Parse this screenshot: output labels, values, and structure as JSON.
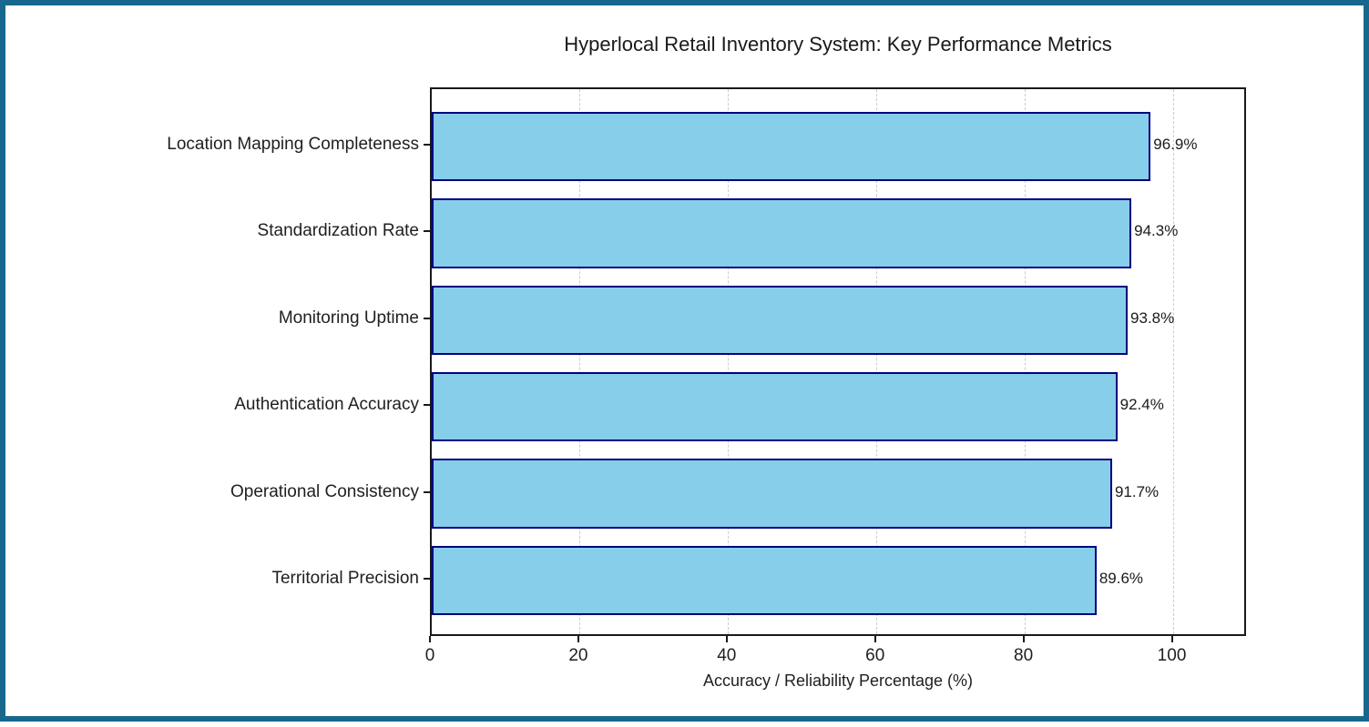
{
  "frame": {
    "border_color": "#17688c",
    "background_color": "#ffffff"
  },
  "chart_data": {
    "type": "bar",
    "orientation": "horizontal",
    "title": "Hyperlocal Retail Inventory System: Key Performance Metrics",
    "xlabel": "Accuracy / Reliability Percentage (%)",
    "ylabel": "",
    "categories": [
      "Location Mapping Completeness",
      "Standardization Rate",
      "Monitoring Uptime",
      "Authentication Accuracy",
      "Operational Consistency",
      "Territorial Precision"
    ],
    "values": [
      96.9,
      94.3,
      93.8,
      92.4,
      91.7,
      89.6
    ],
    "value_label_suffix": "%",
    "xticks": [
      0,
      20,
      40,
      60,
      80,
      100
    ],
    "xlim": [
      0,
      110
    ],
    "grid": "vertical-dashed",
    "grid_color": "#cccccc",
    "bar_color": "#87CEEB",
    "bar_edge_color": "#000080",
    "legend_position": "none"
  }
}
